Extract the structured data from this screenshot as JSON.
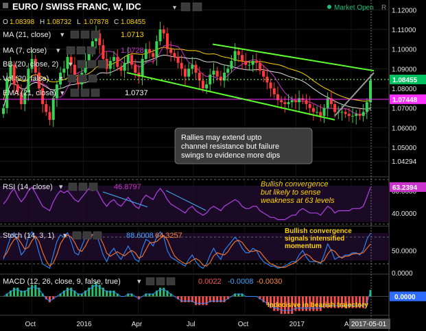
{
  "header": {
    "symbol_title": "EURO / SWISS FRANC, W, IDC",
    "market_status": "Market Open",
    "market_status_letter": "R",
    "ohlc": {
      "o_label": "O",
      "o": "1.08398",
      "h_label": "H",
      "h": "1.08732",
      "l_label": "L",
      "l": "1.07878",
      "c_label": "C",
      "c": "1.08455"
    }
  },
  "indicators": {
    "ma21": {
      "label": "MA (21, close)",
      "value": "1.0713",
      "color": "#ffd400"
    },
    "ma7": {
      "label": "MA (7, close)",
      "value": "1.0728",
      "color": "#cc33cc"
    },
    "bb": {
      "label": "BB (20, close, 2)"
    },
    "vol": {
      "label": "Vol (20, false)"
    },
    "ema": {
      "label": "EMA (21, close)",
      "value": "1.0737"
    }
  },
  "annotations": {
    "main": "Rallies may extend upto\nchannel resistance but failure\nswings to evidence more dips",
    "rsi": "Bullish convergence\nbut likely to sense\nweakness at 63 levels",
    "stoch": "Bullish convergence\nsignals intensified\nmomentum",
    "macd": "Indecisive in bearish trajectory"
  },
  "chart_data": [
    {
      "type": "candlestick",
      "title": "EURO / SWISS FRANC, W, IDC",
      "ylim": [
        1.035,
        1.125
      ],
      "y_ticks": [
        "1.12000",
        "1.11000",
        "1.10000",
        "1.09000",
        "1.08000",
        "1.07000",
        "1.06000",
        "1.05000",
        "1.04294"
      ],
      "price_badges": [
        {
          "value": "1.08455",
          "color": "#00c060"
        },
        {
          "value": "1.07448",
          "color": "#ff33ff"
        }
      ],
      "x_ticks": [
        "Oct",
        "2016",
        "Apr",
        "Jul",
        "Oct",
        "2017",
        "Apr"
      ],
      "cursor_date": "2017-05-01",
      "close": [
        1.07,
        1.085,
        1.092,
        1.082,
        1.078,
        1.072,
        1.078,
        1.09,
        1.095,
        1.088,
        1.08,
        1.072,
        1.068,
        1.064,
        1.075,
        1.082,
        1.088,
        1.09,
        1.096,
        1.092,
        1.086,
        1.082,
        1.088,
        1.094,
        1.099,
        1.104,
        1.108,
        1.102,
        1.095,
        1.09,
        1.094,
        1.096,
        1.091,
        1.089,
        1.093,
        1.097,
        1.092,
        1.088,
        1.086,
        1.095,
        1.1,
        1.098,
        1.096,
        1.104,
        1.11,
        1.108,
        1.1,
        1.098,
        1.096,
        1.093,
        1.09,
        1.086,
        1.09,
        1.092,
        1.088,
        1.084,
        1.08,
        1.082,
        1.087,
        1.089,
        1.086,
        1.084,
        1.088,
        1.09,
        1.094,
        1.099,
        1.097,
        1.094,
        1.092,
        1.092,
        1.094,
        1.093,
        1.089,
        1.086,
        1.083,
        1.08,
        1.077,
        1.074,
        1.073,
        1.072,
        1.073,
        1.074,
        1.073,
        1.075,
        1.074,
        1.072,
        1.07,
        1.068,
        1.068,
        1.066,
        1.07,
        1.075,
        1.072,
        1.068,
        1.068,
        1.068,
        1.067,
        1.066,
        1.066,
        1.067,
        1.066,
        1.068,
        1.073,
        1.084
      ],
      "channel": {
        "upper": [
          1.101,
          1.089
        ],
        "lower": [
          1.084,
          1.064
        ]
      }
    },
    {
      "type": "line",
      "title": "RSI (14, close)",
      "value": "46.8797",
      "badge": "63.2394",
      "ylim": [
        30,
        70
      ],
      "y_ticks": [
        "60.0000",
        "40.0000"
      ],
      "values": [
        48,
        52,
        58,
        62,
        55,
        50,
        54,
        60,
        63,
        58,
        52,
        46,
        44,
        42,
        50,
        56,
        60,
        58,
        60,
        56,
        52,
        50,
        54,
        58,
        62,
        60,
        62,
        56,
        50,
        46,
        50,
        52,
        48,
        46,
        50,
        54,
        50,
        46,
        44,
        52,
        56,
        54,
        52,
        58,
        62,
        58,
        52,
        48,
        46,
        44,
        42,
        40,
        44,
        46,
        42,
        40,
        38,
        40,
        44,
        46,
        44,
        42,
        46,
        48,
        50,
        52,
        50,
        46,
        44,
        44,
        46,
        46,
        42,
        40,
        38,
        36,
        36,
        34,
        34,
        34,
        36,
        38,
        38,
        42,
        44,
        42,
        40,
        40,
        40,
        38,
        42,
        46,
        44,
        40,
        42,
        42,
        42,
        42,
        44,
        44,
        44,
        46,
        54,
        63
      ]
    },
    {
      "type": "line",
      "title": "Stoch (14, 3, 1)",
      "values_text": [
        "88.6008",
        "64.3257"
      ],
      "ylim": [
        0,
        100
      ],
      "y_ticks": [
        "50.0000",
        "0.0000"
      ],
      "k": [
        30,
        55,
        80,
        90,
        70,
        40,
        50,
        80,
        92,
        75,
        45,
        20,
        15,
        10,
        40,
        70,
        85,
        80,
        90,
        70,
        45,
        40,
        60,
        80,
        90,
        85,
        90,
        65,
        40,
        25,
        45,
        55,
        40,
        30,
        45,
        60,
        45,
        30,
        25,
        55,
        75,
        70,
        60,
        80,
        92,
        80,
        50,
        35,
        30,
        25,
        20,
        15,
        30,
        40,
        25,
        15,
        10,
        20,
        40,
        55,
        40,
        30,
        50,
        60,
        70,
        80,
        70,
        55,
        45,
        45,
        55,
        50,
        35,
        25,
        20,
        15,
        15,
        10,
        12,
        15,
        20,
        25,
        25,
        40,
        50,
        35,
        25,
        25,
        25,
        20,
        40,
        65,
        50,
        30,
        35,
        35,
        40,
        40,
        45,
        45,
        40,
        50,
        75,
        88.6
      ],
      "d": [
        35,
        45,
        62,
        75,
        78,
        66,
        53,
        57,
        72,
        82,
        70,
        46,
        27,
        15,
        22,
        40,
        65,
        78,
        85,
        80,
        68,
        52,
        48,
        60,
        76,
        85,
        88,
        80,
        65,
        44,
        37,
        42,
        47,
        42,
        38,
        45,
        50,
        45,
        33,
        37,
        52,
        67,
        68,
        70,
        77,
        84,
        74,
        55,
        38,
        30,
        25,
        20,
        22,
        28,
        32,
        27,
        17,
        15,
        23,
        38,
        45,
        42,
        40,
        47,
        60,
        70,
        73,
        68,
        57,
        48,
        48,
        50,
        47,
        37,
        27,
        20,
        17,
        13,
        12,
        12,
        16,
        20,
        23,
        30,
        38,
        42,
        37,
        28,
        25,
        23,
        28,
        42,
        52,
        48,
        38,
        33,
        37,
        38,
        42,
        43,
        43,
        45,
        55,
        64.3
      ]
    },
    {
      "type": "bar",
      "title": "MACD (12, 26, close, 9, false, true)",
      "values_text": [
        "0.0022",
        "-0.0008",
        "-0.0030"
      ],
      "ylim": [
        -0.006,
        0.006
      ],
      "badge": "0.0000",
      "macd": [
        0.0,
        0.001,
        0.002,
        0.003,
        0.003,
        0.002,
        0.002,
        0.003,
        0.004,
        0.004,
        0.003,
        0.001,
        -0.001,
        -0.002,
        -0.001,
        0.0,
        0.001,
        0.002,
        0.003,
        0.003,
        0.002,
        0.001,
        0.001,
        0.002,
        0.003,
        0.004,
        0.005,
        0.004,
        0.003,
        0.002,
        0.002,
        0.002,
        0.001,
        0.0,
        0.0,
        0.001,
        0.001,
        0.0,
        -0.001,
        0.0,
        0.001,
        0.001,
        0.001,
        0.002,
        0.003,
        0.003,
        0.002,
        0.001,
        0.0,
        -0.001,
        -0.002,
        -0.002,
        -0.002,
        -0.002,
        -0.003,
        -0.003,
        -0.003,
        -0.003,
        -0.002,
        -0.002,
        -0.002,
        -0.002,
        -0.002,
        -0.001,
        0.0,
        0.001,
        0.001,
        0.001,
        0.0,
        0.0,
        0.0,
        0.0,
        -0.001,
        -0.002,
        -0.003,
        -0.004,
        -0.005,
        -0.005,
        -0.006,
        -0.006,
        -0.006,
        -0.006,
        -0.005,
        -0.005,
        -0.005,
        -0.005,
        -0.005,
        -0.005,
        -0.005,
        -0.005,
        -0.004,
        -0.004,
        -0.004,
        -0.004,
        -0.004,
        -0.004,
        -0.004,
        -0.004,
        -0.004,
        -0.004,
        -0.004,
        -0.004,
        -0.003,
        0.0022
      ]
    }
  ]
}
